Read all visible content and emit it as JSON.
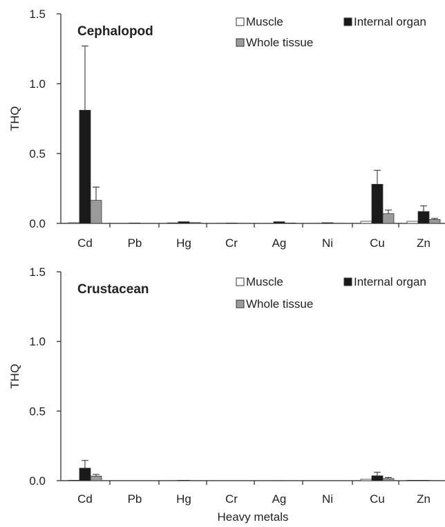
{
  "chart_data": [
    {
      "type": "bar",
      "title": "Cephalopod",
      "xlabel": "",
      "ylabel": "THQ",
      "ylim": [
        0,
        1.5
      ],
      "yticks": [
        "0.0",
        "0.5",
        "1.0",
        "1.5"
      ],
      "categories": [
        "Cd",
        "Pb",
        "Hg",
        "Cr",
        "Ag",
        "Ni",
        "Cu",
        "Zn"
      ],
      "legend_placement": "top-right",
      "series": [
        {
          "name": "Muscle",
          "color": "#ffffff",
          "values": [
            0.005,
            0.0,
            0.004,
            0.002,
            0.0,
            0.002,
            0.015,
            0.015
          ],
          "errors": [
            0.0,
            0.0,
            0.0,
            0.0,
            0.0,
            0.0,
            0.0,
            0.0
          ]
        },
        {
          "name": "Internal organ",
          "color": "#1a1a1a",
          "values": [
            0.81,
            0.003,
            0.012,
            0.003,
            0.012,
            0.005,
            0.28,
            0.085
          ],
          "errors": [
            0.46,
            0.0,
            0.0,
            0.0,
            0.0,
            0.0,
            0.1,
            0.04
          ]
        },
        {
          "name": "Whole tissue",
          "color": "#9a9a9a",
          "values": [
            0.165,
            0.0,
            0.006,
            0.002,
            0.003,
            0.002,
            0.07,
            0.028
          ],
          "errors": [
            0.095,
            0.0,
            0.0,
            0.0,
            0.0,
            0.0,
            0.025,
            0.008
          ]
        }
      ]
    },
    {
      "type": "bar",
      "title": "Crustacean",
      "xlabel": "Heavy metals",
      "ylabel": "THQ",
      "ylim": [
        0,
        1.5
      ],
      "yticks": [
        "0.0",
        "0.5",
        "1.0",
        "1.5"
      ],
      "categories": [
        "Cd",
        "Pb",
        "Hg",
        "Cr",
        "Ag",
        "Ni",
        "Cu",
        "Zn"
      ],
      "legend_placement": "top-right",
      "series": [
        {
          "name": "Muscle",
          "color": "#ffffff",
          "values": [
            0.003,
            0.0,
            0.002,
            0.0,
            0.0,
            0.0,
            0.01,
            0.003
          ],
          "errors": [
            0.0,
            0.0,
            0.0,
            0.0,
            0.0,
            0.0,
            0.0,
            0.0
          ]
        },
        {
          "name": "Internal organ",
          "color": "#1a1a1a",
          "values": [
            0.09,
            0.0,
            0.003,
            0.0,
            0.002,
            0.0,
            0.035,
            0.003
          ],
          "errors": [
            0.055,
            0.0,
            0.0,
            0.0,
            0.0,
            0.0,
            0.025,
            0.0
          ]
        },
        {
          "name": "Whole tissue",
          "color": "#9a9a9a",
          "values": [
            0.033,
            0.0,
            0.002,
            0.0,
            0.0,
            0.0,
            0.015,
            0.002
          ],
          "errors": [
            0.012,
            0.0,
            0.0,
            0.0,
            0.0,
            0.0,
            0.008,
            0.0
          ]
        }
      ]
    }
  ]
}
